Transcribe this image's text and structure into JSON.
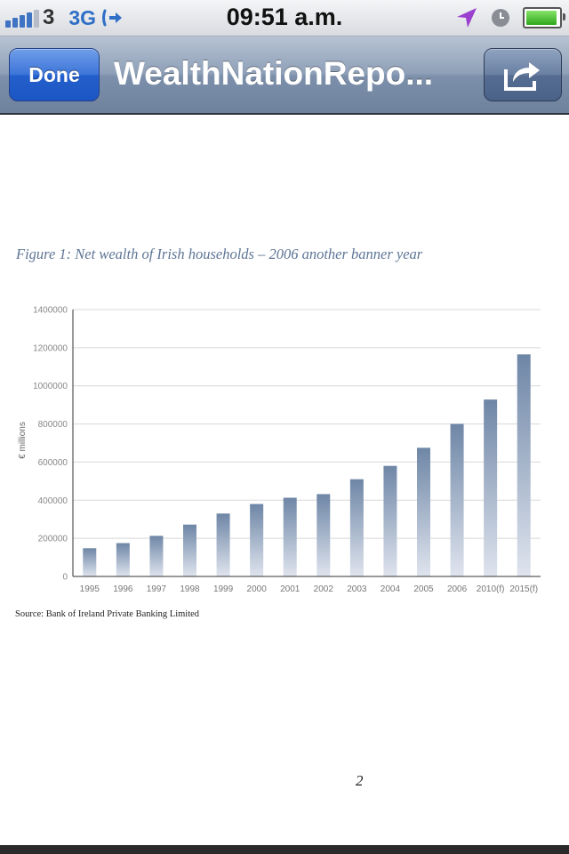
{
  "status_bar": {
    "carrier": "3",
    "network": "3G",
    "time": "09:51 a.m.",
    "icons": [
      "signal-bars-icon",
      "sync-arrow-icon",
      "location-arrow-icon",
      "clock-icon",
      "battery-icon"
    ],
    "signal_bars": 4,
    "battery_level": 0.95
  },
  "nav_bar": {
    "done_label": "Done",
    "title": "WealthNationRepo...",
    "share_icon": "share-icon"
  },
  "document": {
    "figure_title": "Figure 1: Net wealth of Irish households – 2006 another banner year",
    "source": "Source: Bank of Ireland Private Banking Limited",
    "page_number": "2"
  },
  "colors": {
    "nav_bar": "#7d90ab",
    "done_button": "#2460cc",
    "bar_top": "#6e86a6",
    "bar_bottom": "#dfe4ee",
    "figure_title": "#5d7596"
  },
  "chart_data": {
    "type": "bar",
    "title": "Figure 1: Net wealth of Irish households – 2006 another banner year",
    "ylabel": "€ millions",
    "xlabel": "",
    "categories": [
      "1995",
      "1996",
      "1997",
      "1998",
      "1999",
      "2000",
      "2001",
      "2002",
      "2003",
      "2004",
      "2005",
      "2006",
      "2010(f)",
      "2015(f)"
    ],
    "values": [
      148000,
      175000,
      213000,
      272000,
      330000,
      380000,
      413000,
      432000,
      510000,
      580000,
      675000,
      800000,
      928000,
      1165000
    ],
    "ylim": [
      0,
      1400000
    ],
    "yticks": [
      0,
      200000,
      400000,
      600000,
      800000,
      1000000,
      1200000,
      1400000
    ],
    "ytick_labels": [
      "0",
      "200000",
      "400000",
      "600000",
      "800000",
      "1000000",
      "1200000",
      "1400000"
    ],
    "grid": true,
    "legend": "none"
  }
}
